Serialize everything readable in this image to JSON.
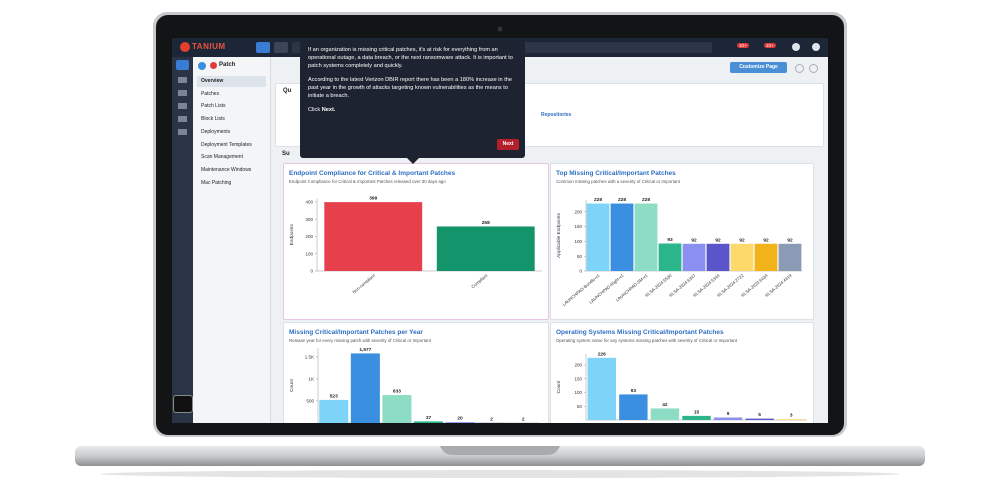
{
  "app": {
    "logo": "TANIUM",
    "badges": [
      "10+",
      "10+"
    ],
    "module": "Patch",
    "customize": "Customize Page"
  },
  "nav": [
    "Overview",
    "Patches",
    "Patch Lists",
    "Block Lists",
    "Deployments",
    "Deployment Templates",
    "Scan Management",
    "Maintenance Windows",
    "Mac Patching"
  ],
  "sections": {
    "quick": "Qu",
    "quick_link": "Repositories",
    "summary": "Su"
  },
  "tooltip": {
    "paragraphs": [
      "If an organization is missing critical patches, it's at risk for everything from an operational outage, a data breach, or the next ransomware attack. It is important to patch systems completely and quickly.",
      "According to the latest Verizon DBIR report there has been a 180% increase in the past year in the growth of attacks targeting known vulnerabilities as the means to initiate a breach."
    ],
    "click_text": "Click",
    "click_emphasis": "Next.",
    "button": "Next"
  },
  "chart_data": [
    {
      "type": "bar",
      "title": "Endpoint Compliance for Critical & Important Patches",
      "subtitle": "Endpoint Compliance for Critical & Important Patches released over 30 days ago",
      "y_label": "Endpoints",
      "categories": [
        "Non-compliant",
        "Compliant"
      ],
      "values": [
        399,
        258
      ],
      "colors": [
        "#e5404c",
        "#14946a"
      ],
      "ylim": [
        0,
        420
      ],
      "yticks": [
        0,
        100,
        200,
        300,
        400
      ]
    },
    {
      "type": "bar",
      "title": "Top Missing Critical/Important Patches",
      "subtitle": "Common missing patches with a severity of Critical or Important",
      "y_label": "Applicable Endpoints",
      "categories": [
        "LAUNCHPAD-Bundle-v1",
        "LAUNCHPAD-Right-v1",
        "LAUNCHPAD-SM-v1",
        "RLSA-2024:5530",
        "RLSA-2024:6347",
        "RLSA-2024:5344",
        "RLSA-2024:2722",
        "RLSA-2023:6434",
        "RLSA-2024:4419"
      ],
      "values": [
        228,
        228,
        228,
        93,
        92,
        92,
        92,
        92,
        92
      ],
      "colors": [
        "#7dd3f8",
        "#3b8fe0",
        "#8ddcc4",
        "#2bb58a",
        "#8a8ff0",
        "#5a55c8",
        "#fdd86a",
        "#f2b21a",
        "#8c9bb5"
      ],
      "ylim": [
        0,
        240
      ],
      "yticks": [
        0,
        50,
        100,
        150,
        200
      ]
    },
    {
      "type": "bar",
      "title": "Missing Critical/Important Patches per Year",
      "subtitle": "Release year for every missing patch with severity of Critical or Important",
      "y_label": "Count",
      "categories": [
        null,
        null,
        null,
        null,
        null,
        null,
        null
      ],
      "values": [
        523,
        1577,
        633,
        37,
        20,
        2,
        2
      ],
      "value_labels": [
        "523",
        "1,577",
        "633",
        "37",
        "20",
        "2",
        "2"
      ],
      "colors": [
        "#7dd3f8",
        "#3b8fe0",
        "#8ddcc4",
        "#2bb58a",
        "#8a8ff0",
        "#5a55c8",
        "#fdd86a"
      ],
      "ylim": [
        0,
        1700
      ],
      "yticks": [
        500,
        {
          "value": 1000,
          "label": "1K"
        },
        {
          "value": 1500,
          "label": "1.5K"
        }
      ]
    },
    {
      "type": "bar",
      "title": "Operating Systems Missing Critical/Important Patches",
      "subtitle": "Operating system name for any systems missing patches with severity of Critical or Important",
      "y_label": "Count",
      "categories": [
        null,
        null,
        null,
        null,
        null,
        null,
        null
      ],
      "values": [
        226,
        93,
        42,
        15,
        9,
        5,
        3
      ],
      "colors": [
        "#7dd3f8",
        "#3b8fe0",
        "#8ddcc4",
        "#2bb58a",
        "#8a8ff0",
        "#5a55c8",
        "#fdd86a"
      ],
      "ylim": [
        0,
        240
      ],
      "yticks": [
        50,
        100,
        150,
        200
      ]
    }
  ]
}
